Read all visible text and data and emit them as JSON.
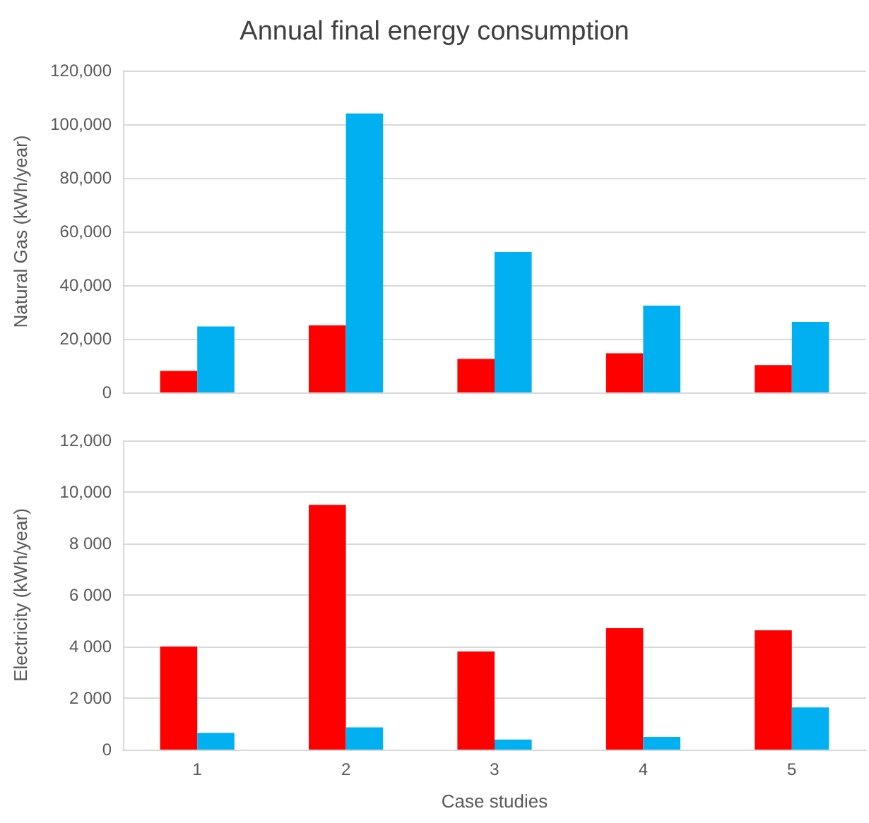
{
  "chart_data": [
    {
      "type": "bar",
      "title": "Annual final energy consumption",
      "ylabel": "Natural Gas (kWh/year)",
      "categories": [
        "1",
        "2",
        "3",
        "4",
        "5"
      ],
      "tick_labels": "y",
      "grid": "y",
      "ylim": [
        0,
        120000
      ],
      "yticks": [
        0,
        {
          "value": 20000,
          "label": "20,000"
        },
        {
          "value": 40000,
          "label": "40,000"
        },
        {
          "value": 60000,
          "label": "60,000"
        },
        {
          "value": 80000,
          "label": "80,000"
        },
        {
          "value": 100000,
          "label": "100,000"
        },
        {
          "value": 120000,
          "label": "120,000"
        }
      ],
      "series": [
        {
          "color": "#ff0000",
          "values": [
            8000,
            25000,
            12500,
            14600,
            10200
          ]
        },
        {
          "color": "#00b0f0",
          "values": [
            24600,
            104000,
            52400,
            32400,
            26300
          ]
        }
      ]
    },
    {
      "type": "bar",
      "xlabel": "Case studies",
      "ylabel": "Electricity (kWh/year)",
      "categories": [
        "1",
        "2",
        "3",
        "4",
        "5"
      ],
      "grid": "y",
      "ylim": [
        0,
        12000
      ],
      "yticks": [
        0,
        {
          "value": 2000,
          "label": "2 000"
        },
        {
          "value": 4000,
          "label": "4 000"
        },
        {
          "value": 6000,
          "label": "6 000"
        },
        {
          "value": 8000,
          "label": "8 000"
        },
        {
          "value": 10000,
          "label": "10,000"
        },
        {
          "value": 12000,
          "label": "12,000"
        }
      ],
      "series": [
        {
          "color": "#ff0000",
          "values": [
            4000,
            9500,
            3810,
            4710,
            4630
          ]
        },
        {
          "color": "#00b0f0",
          "values": [
            650,
            860,
            390,
            490,
            1640
          ]
        }
      ]
    }
  ]
}
